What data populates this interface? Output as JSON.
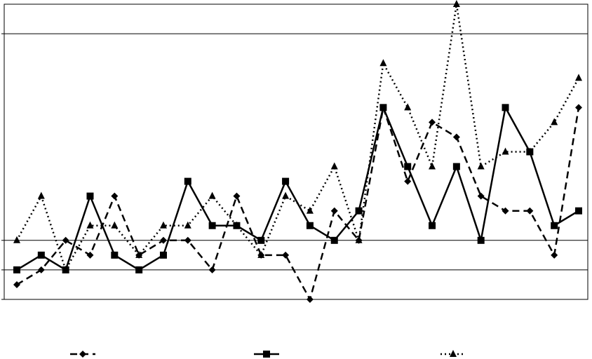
{
  "chart_data": {
    "type": "line",
    "categories": [
      null,
      null,
      null,
      null,
      null,
      null,
      null,
      null,
      null,
      null,
      null,
      null,
      null,
      null,
      null,
      null,
      null,
      null,
      null,
      null,
      null,
      null,
      null,
      null
    ],
    "series": [
      {
        "color": "#000000",
        "marker": "diamond",
        "dash": "dashed",
        "values": [
          1,
          2,
          4,
          3,
          7,
          3,
          4,
          4,
          2,
          7,
          3,
          3,
          0,
          6,
          4,
          13,
          8,
          12,
          11,
          7,
          6,
          6,
          3,
          13
        ]
      },
      {
        "color": "#000000",
        "marker": "square",
        "dash": "solid",
        "values": [
          2,
          3,
          2,
          7,
          3,
          2,
          3,
          8,
          5,
          5,
          4,
          8,
          5,
          4,
          6,
          13,
          9,
          5,
          9,
          4,
          13,
          10,
          5,
          6
        ]
      },
      {
        "color": "#000000",
        "marker": "triangle",
        "dash": "dotted",
        "values": [
          4,
          7,
          2,
          5,
          5,
          3,
          5,
          5,
          7,
          5,
          3,
          7,
          6,
          9,
          4,
          16,
          13,
          9,
          20,
          9,
          10,
          10,
          12,
          15
        ]
      }
    ],
    "ylim": [
      0,
      20
    ],
    "yticks": [
      0,
      2,
      4,
      18
    ],
    "grid": true,
    "legend": "bottom"
  }
}
